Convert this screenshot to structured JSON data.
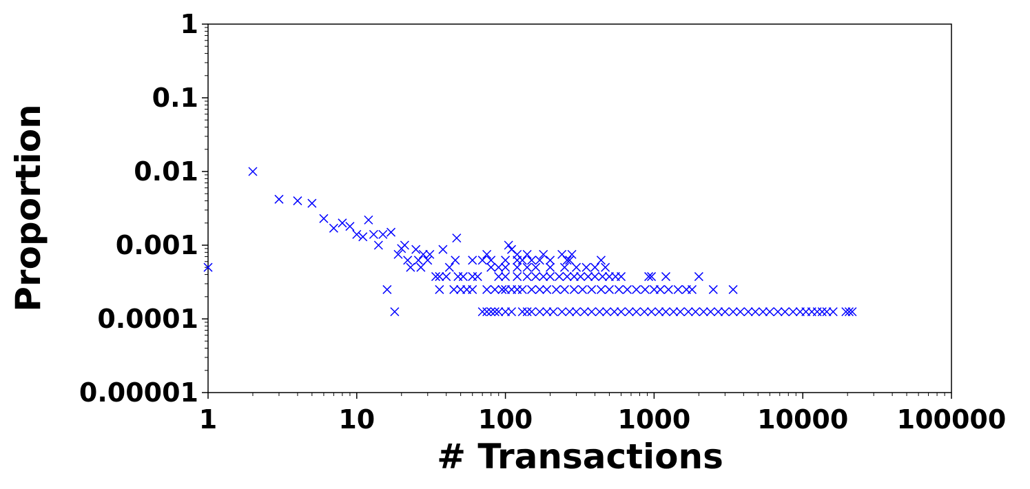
{
  "chart_data": {
    "type": "scatter",
    "xlabel": "# Transactions",
    "ylabel": "Proportion",
    "color": "#0000ff",
    "marker": "x",
    "xscale": "log",
    "yscale": "log",
    "xlim": [
      1,
      100000
    ],
    "ylim": [
      1e-05,
      1
    ],
    "xticks": [
      1,
      10,
      100,
      1000,
      10000,
      100000
    ],
    "yticks": [
      1e-05,
      0.0001,
      0.001,
      0.01,
      0.1,
      1
    ],
    "x": [
      1,
      2,
      3,
      4,
      5,
      6,
      7,
      8,
      9,
      10,
      11,
      12,
      13,
      14,
      15,
      16,
      17,
      18,
      19,
      20,
      21,
      22,
      23,
      25,
      26,
      27,
      28,
      30,
      31,
      38,
      42,
      46,
      47,
      105,
      110,
      70,
      75,
      80,
      85,
      90,
      100,
      110,
      130,
      140,
      150,
      170,
      190,
      210,
      240,
      270,
      300,
      340,
      380,
      430,
      480,
      540,
      600,
      680,
      760,
      860,
      960,
      1080,
      1200,
      1350,
      1500,
      1700,
      1900,
      2150,
      2400,
      2700,
      3000,
      3400,
      3800,
      4300,
      4800,
      5400,
      6000,
      6800,
      7600,
      8600,
      9600,
      10500,
      11500,
      12500,
      13500,
      14500,
      16000,
      19500,
      20500,
      21500,
      36,
      45,
      50,
      55,
      60,
      75,
      85,
      95,
      100,
      110,
      120,
      130,
      150,
      170,
      190,
      220,
      250,
      290,
      330,
      380,
      440,
      500,
      580,
      660,
      760,
      870,
      1000,
      1100,
      1250,
      1450,
      1650,
      1800,
      2500,
      3400,
      34,
      36,
      40,
      48,
      52,
      60,
      65,
      90,
      100,
      120,
      140,
      160,
      180,
      200,
      230,
      260,
      290,
      320,
      360,
      400,
      450,
      500,
      550,
      600,
      920,
      960,
      1200,
      2000,
      80,
      90,
      100,
      120,
      140,
      160,
      200,
      250,
      300,
      350,
      400,
      470,
      60,
      70,
      80,
      100,
      120,
      130,
      150,
      170,
      200,
      260,
      270,
      440,
      75,
      120,
      140,
      180,
      240,
      280
    ],
    "values": [
      0.0005,
      0.01,
      0.0042,
      0.004,
      0.0037,
      0.0023,
      0.0017,
      0.002,
      0.0018,
      0.0014,
      0.0013,
      0.0022,
      0.0014,
      0.001,
      0.0014,
      0.00025,
      0.0015,
      0.000125,
      0.00075,
      0.0009,
      0.001,
      0.000625,
      0.0005,
      0.000875,
      0.000625,
      0.0005,
      0.00075,
      0.000625,
      0.00075,
      0.000875,
      0.0005,
      0.000625,
      0.00125,
      0.001,
      0.000875,
      0.000125,
      0.000125,
      0.000125,
      0.000125,
      0.000125,
      0.000125,
      0.000125,
      0.000125,
      0.000125,
      0.000125,
      0.000125,
      0.000125,
      0.000125,
      0.000125,
      0.000125,
      0.000125,
      0.000125,
      0.000125,
      0.000125,
      0.000125,
      0.000125,
      0.000125,
      0.000125,
      0.000125,
      0.000125,
      0.000125,
      0.000125,
      0.000125,
      0.000125,
      0.000125,
      0.000125,
      0.000125,
      0.000125,
      0.000125,
      0.000125,
      0.000125,
      0.000125,
      0.000125,
      0.000125,
      0.000125,
      0.000125,
      0.000125,
      0.000125,
      0.000125,
      0.000125,
      0.000125,
      0.000125,
      0.000125,
      0.000125,
      0.000125,
      0.000125,
      0.000125,
      0.000125,
      0.000125,
      0.000125,
      0.00025,
      0.00025,
      0.00025,
      0.00025,
      0.00025,
      0.00025,
      0.00025,
      0.00025,
      0.00025,
      0.00025,
      0.00025,
      0.00025,
      0.00025,
      0.00025,
      0.00025,
      0.00025,
      0.00025,
      0.00025,
      0.00025,
      0.00025,
      0.00025,
      0.00025,
      0.00025,
      0.00025,
      0.00025,
      0.00025,
      0.00025,
      0.00025,
      0.00025,
      0.00025,
      0.00025,
      0.00025,
      0.00025,
      0.00025,
      0.000375,
      0.000375,
      0.000375,
      0.000375,
      0.000375,
      0.000375,
      0.000375,
      0.000375,
      0.000375,
      0.000375,
      0.000375,
      0.000375,
      0.000375,
      0.000375,
      0.000375,
      0.000375,
      0.000375,
      0.000375,
      0.000375,
      0.000375,
      0.000375,
      0.000375,
      0.000375,
      0.000375,
      0.000375,
      0.000375,
      0.000375,
      0.000375,
      0.0005,
      0.0005,
      0.0005,
      0.0005,
      0.0005,
      0.0005,
      0.0005,
      0.0005,
      0.0005,
      0.0005,
      0.0005,
      0.0005,
      0.000625,
      0.000625,
      0.000625,
      0.000625,
      0.000625,
      0.000625,
      0.000625,
      0.000625,
      0.000625,
      0.000625,
      0.000625,
      0.000625,
      0.00075,
      0.00075,
      0.00075,
      0.00075,
      0.00075,
      0.00075
    ]
  }
}
